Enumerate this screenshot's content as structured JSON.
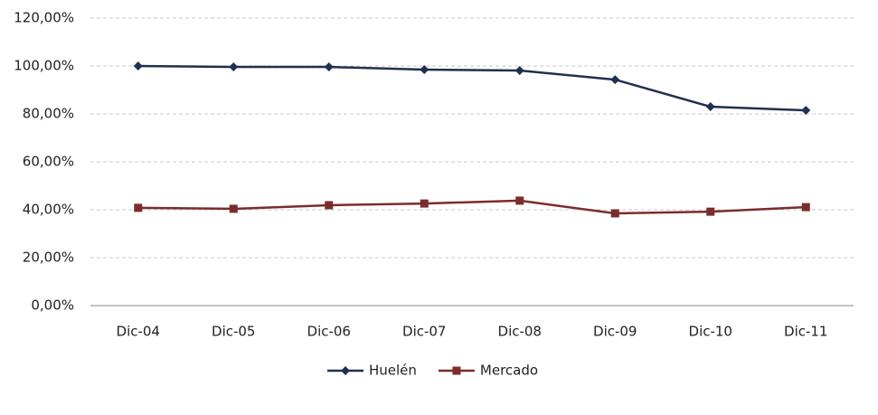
{
  "chart_data": {
    "type": "line",
    "categories": [
      "Dic-04",
      "Dic-05",
      "Dic-06",
      "Dic-07",
      "Dic-08",
      "Dic-09",
      "Dic-10",
      "Dic-11"
    ],
    "series": [
      {
        "name": "Huelén",
        "color": "#1f3050",
        "marker": "diamond",
        "values": [
          100,
          99.6,
          99.6,
          98.5,
          98.1,
          94.3,
          83,
          81.5
        ]
      },
      {
        "name": "Mercado",
        "color": "#7b2c2c",
        "marker": "square",
        "values": [
          40.8,
          40.4,
          41.9,
          42.6,
          43.8,
          38.5,
          39.2,
          41.1
        ]
      }
    ],
    "ylim": [
      0,
      120
    ],
    "yticks": [
      {
        "value": 0,
        "label": "0,00%"
      },
      {
        "value": 20,
        "label": "20,00%"
      },
      {
        "value": 40,
        "label": "40,00%"
      },
      {
        "value": 60,
        "label": "60,00%"
      },
      {
        "value": 80,
        "label": "80,00%"
      },
      {
        "value": 100,
        "label": "100,00%"
      },
      {
        "value": 120,
        "label": "120,00%"
      }
    ],
    "grid": true,
    "legend": "bottom"
  }
}
